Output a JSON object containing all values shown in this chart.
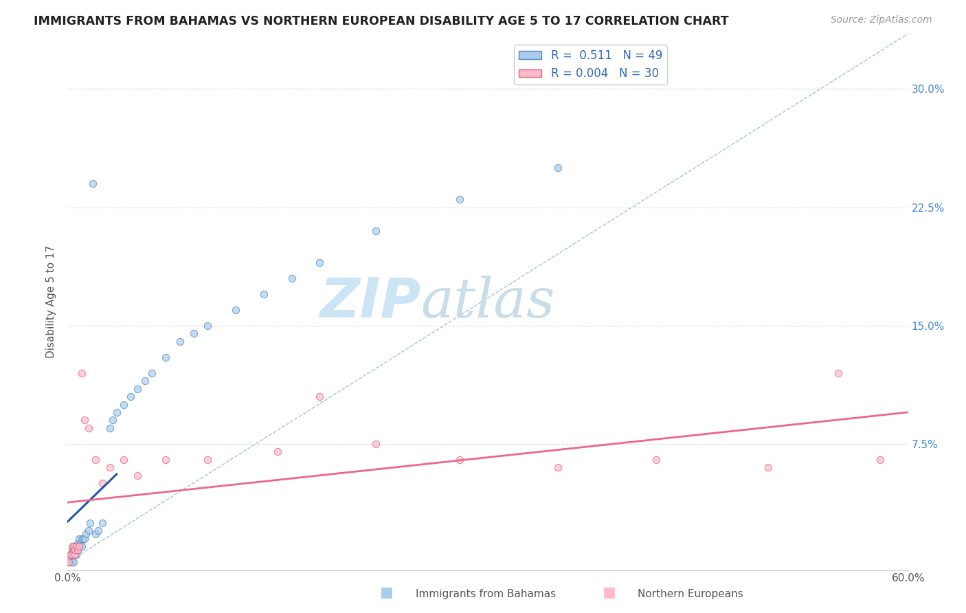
{
  "title": "IMMIGRANTS FROM BAHAMAS VS NORTHERN EUROPEAN DISABILITY AGE 5 TO 17 CORRELATION CHART",
  "source_text": "Source: ZipAtlas.com",
  "ylabel": "Disability Age 5 to 17",
  "xlim": [
    0.0,
    0.6
  ],
  "ylim": [
    -0.005,
    0.335
  ],
  "xticks": [
    0.0,
    0.1,
    0.2,
    0.3,
    0.4,
    0.5,
    0.6
  ],
  "xticklabels": [
    "0.0%",
    "",
    "",
    "",
    "",
    "",
    "60.0%"
  ],
  "yticks": [
    0.0,
    0.075,
    0.15,
    0.225,
    0.3
  ],
  "yticklabels_right": [
    "",
    "7.5%",
    "15.0%",
    "22.5%",
    "30.0%"
  ],
  "grid_color": "#dddddd",
  "background_color": "#ffffff",
  "watermark_zip": "ZIP",
  "watermark_atlas": "atlas",
  "watermark_color": "#cce5f5",
  "legend_R1": "0.511",
  "legend_N1": "49",
  "legend_R2": "0.004",
  "legend_N2": "30",
  "series1_color": "#7aaddd",
  "series1_fill": "#aaccee",
  "series1_edge": "#5588bb",
  "series2_color": "#ff99aa",
  "series2_fill": "#ffbbcc",
  "series2_edge": "#dd6677",
  "blue_line_color": "#2255aa",
  "pink_line_color": "#ee6688",
  "diag_line_color": "#99bbdd",
  "blue_scatter_x": [
    0.001,
    0.002,
    0.002,
    0.003,
    0.003,
    0.003,
    0.004,
    0.004,
    0.004,
    0.005,
    0.005,
    0.005,
    0.006,
    0.006,
    0.007,
    0.007,
    0.008,
    0.008,
    0.009,
    0.01,
    0.01,
    0.011,
    0.012,
    0.013,
    0.015,
    0.016,
    0.018,
    0.02,
    0.022,
    0.025,
    0.03,
    0.032,
    0.035,
    0.04,
    0.045,
    0.05,
    0.055,
    0.06,
    0.07,
    0.08,
    0.09,
    0.1,
    0.12,
    0.14,
    0.16,
    0.18,
    0.22,
    0.28,
    0.35
  ],
  "blue_scatter_y": [
    0.0,
    0.0,
    0.005,
    0.0,
    0.005,
    0.008,
    0.0,
    0.005,
    0.01,
    0.005,
    0.008,
    0.01,
    0.005,
    0.01,
    0.008,
    0.012,
    0.01,
    0.015,
    0.012,
    0.01,
    0.015,
    0.015,
    0.015,
    0.018,
    0.02,
    0.025,
    0.24,
    0.018,
    0.02,
    0.025,
    0.085,
    0.09,
    0.095,
    0.1,
    0.105,
    0.11,
    0.115,
    0.12,
    0.13,
    0.14,
    0.145,
    0.15,
    0.16,
    0.17,
    0.18,
    0.19,
    0.21,
    0.23,
    0.25
  ],
  "pink_scatter_x": [
    0.001,
    0.002,
    0.003,
    0.003,
    0.004,
    0.004,
    0.005,
    0.005,
    0.006,
    0.007,
    0.008,
    0.01,
    0.012,
    0.015,
    0.02,
    0.025,
    0.03,
    0.04,
    0.05,
    0.07,
    0.1,
    0.15,
    0.18,
    0.22,
    0.28,
    0.35,
    0.42,
    0.5,
    0.55,
    0.58
  ],
  "pink_scatter_y": [
    0.0,
    0.005,
    0.005,
    0.01,
    0.008,
    0.01,
    0.005,
    0.008,
    0.01,
    0.008,
    0.01,
    0.12,
    0.09,
    0.085,
    0.065,
    0.05,
    0.06,
    0.065,
    0.055,
    0.065,
    0.065,
    0.07,
    0.105,
    0.075,
    0.065,
    0.06,
    0.065,
    0.06,
    0.12,
    0.065
  ]
}
